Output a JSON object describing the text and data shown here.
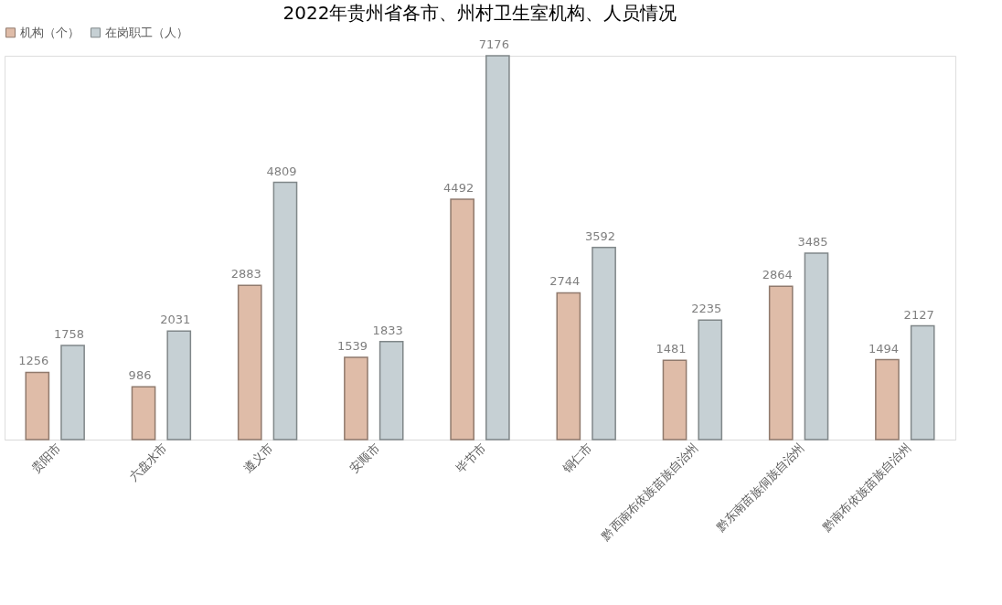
{
  "chart_data": {
    "type": "bar",
    "title": "2022年贵州省各市、州村卫生室机构、人员情况",
    "categories": [
      "贵阳市",
      "六盘水市",
      "遵义市",
      "安顺市",
      "毕节市",
      "铜仁市",
      "黔西南布依族苗族自治州",
      "黔东南苗族侗族自治州",
      "黔南布依族苗族自治州"
    ],
    "series": [
      {
        "name": "机构（个）",
        "color": "#dfbca8",
        "values": [
          1256,
          986,
          2883,
          1539,
          4492,
          2744,
          1481,
          2864,
          1494
        ]
      },
      {
        "name": "在岗职工（人）",
        "color": "#c6d0d4",
        "values": [
          1758,
          2031,
          4809,
          1833,
          7176,
          3592,
          2235,
          3485,
          2127
        ]
      }
    ],
    "data_labels": true,
    "legend": "top",
    "grid": false
  }
}
